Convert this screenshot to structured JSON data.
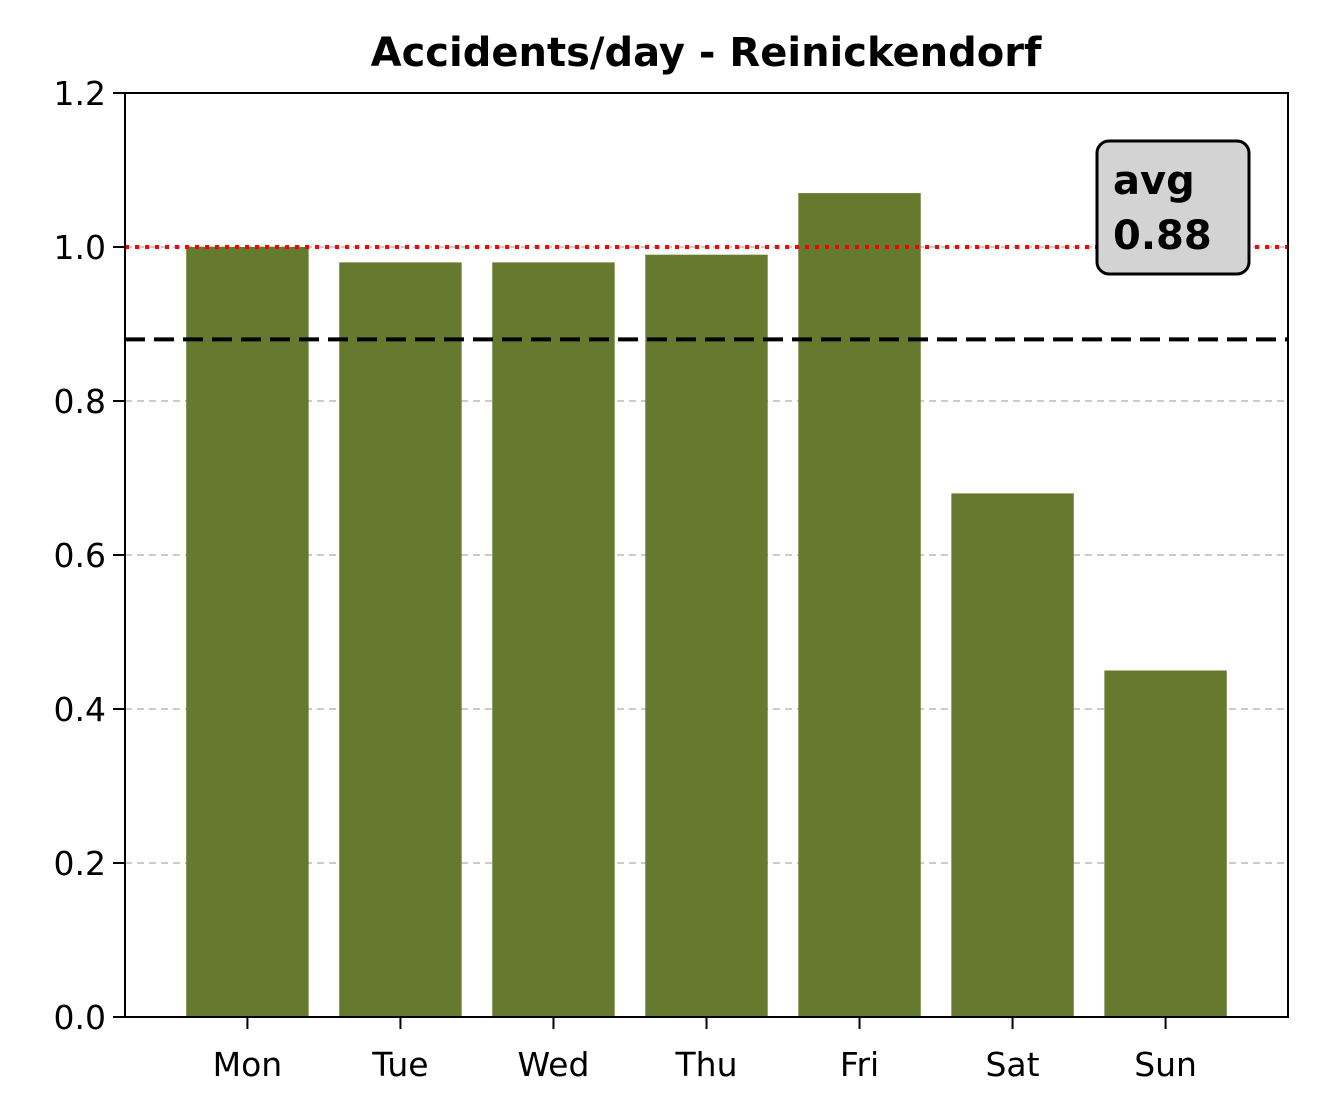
{
  "chart_data": {
    "type": "bar",
    "title": "Accidents/day - Reinickendorf",
    "xlabel": "",
    "ylabel": "",
    "categories": [
      "Mon",
      "Tue",
      "Wed",
      "Thu",
      "Fri",
      "Sat",
      "Sun"
    ],
    "values": [
      1.0,
      0.98,
      0.98,
      0.99,
      1.07,
      0.68,
      0.45
    ],
    "ylim": [
      0,
      1.2
    ],
    "yticks": [
      0.0,
      0.2,
      0.4,
      0.6,
      0.8,
      1.0,
      1.2
    ],
    "ytick_labels": [
      "0.0",
      "0.2",
      "0.4",
      "0.6",
      "0.8",
      "1.0",
      "1.2"
    ],
    "grid": {
      "axis": "y",
      "style": "dashed",
      "color": "#cccccc"
    },
    "bar_color": "#667a2f",
    "reference_lines": [
      {
        "value": 0.88,
        "style": "dashed",
        "color": "#000000"
      },
      {
        "value": 1.0,
        "style": "dotted",
        "color": "#ff0000"
      }
    ],
    "annotation": {
      "line1": "avg",
      "line2": "0.88",
      "placement": "top-right",
      "background": "#d3d3d3"
    }
  }
}
